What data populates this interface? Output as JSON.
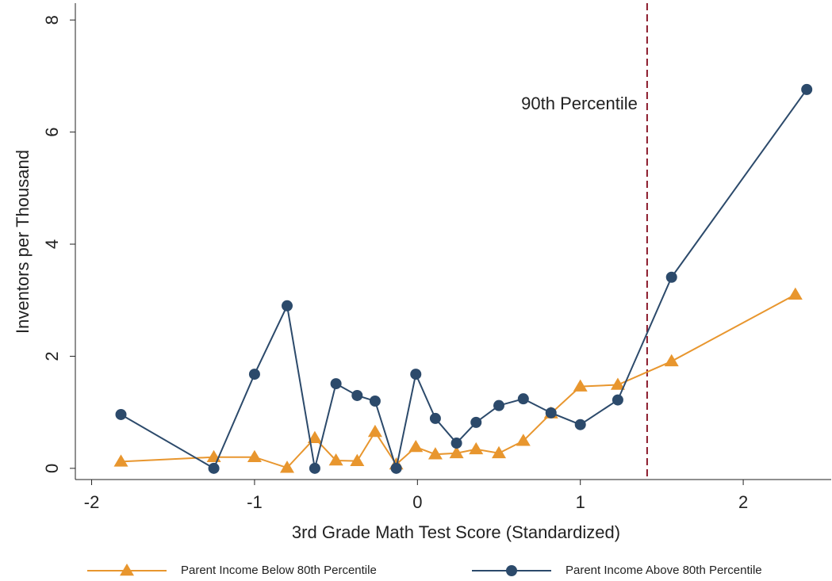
{
  "chart_data": {
    "type": "line",
    "xlabel": "3rd Grade Math Test Score (Standardized)",
    "ylabel": "Inventors per Thousand",
    "xlim": [
      -2.1,
      2.54
    ],
    "xticks": [
      -2,
      -1,
      0,
      1,
      2
    ],
    "ylim": [
      -0.2,
      8.3
    ],
    "yticks": [
      0,
      2,
      4,
      6,
      8
    ],
    "grid": false,
    "legend": "bottom",
    "reference_line": {
      "x": 1.41,
      "label": "90th Percentile",
      "color": "#8b1a2b"
    },
    "series": [
      {
        "name": "Parent Income Below 80th Percentile",
        "color": "#e8962e",
        "marker": "triangle",
        "x": [
          -1.82,
          -1.25,
          -1.0,
          -0.8,
          -0.63,
          -0.5,
          -0.37,
          -0.26,
          -0.13,
          -0.01,
          0.11,
          0.24,
          0.36,
          0.5,
          0.65,
          0.82,
          1.0,
          1.23,
          1.56,
          2.32
        ],
        "values": [
          0.12,
          0.2,
          0.2,
          0.01,
          0.54,
          0.14,
          0.13,
          0.65,
          0.07,
          0.38,
          0.25,
          0.27,
          0.34,
          0.27,
          0.49,
          0.98,
          1.46,
          1.49,
          1.91,
          3.1
        ]
      },
      {
        "name": "Parent Income Above 80th Percentile",
        "color": "#2c4a6b",
        "marker": "circle",
        "x": [
          -1.82,
          -1.25,
          -1.0,
          -0.8,
          -0.63,
          -0.5,
          -0.37,
          -0.26,
          -0.13,
          -0.01,
          0.11,
          0.24,
          0.36,
          0.5,
          0.65,
          0.82,
          1.0,
          1.23,
          1.56,
          2.39
        ],
        "values": [
          0.96,
          0,
          1.68,
          2.9,
          0,
          1.51,
          1.3,
          1.2,
          0,
          1.68,
          0.89,
          0.45,
          0.82,
          1.12,
          1.24,
          0.99,
          0.78,
          1.22,
          3.41,
          6.76
        ]
      }
    ]
  }
}
